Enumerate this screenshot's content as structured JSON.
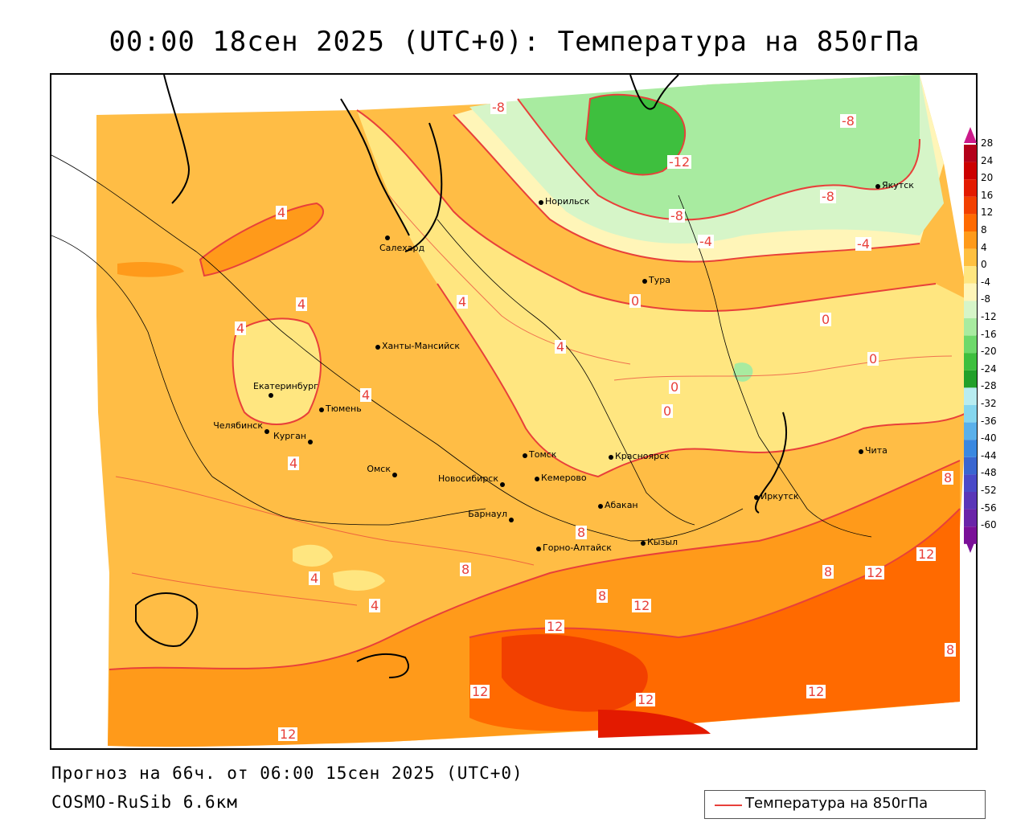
{
  "title": "00:00 18сен 2025 (UTC+0): Температура на 850гПа",
  "footer": {
    "forecast": "Прогноз на 66ч. от 06:00 15сен 2025 (UTC+0)",
    "model": "COSMO-RuSib 6.6км"
  },
  "legend": {
    "label": "Температура на 850гПа",
    "color": "#e8403a"
  },
  "colorbar": {
    "ticks": [
      "28",
      "24",
      "20",
      "16",
      "12",
      "8",
      "4",
      "0",
      "-4",
      "-8",
      "-12",
      "-16",
      "-20",
      "-24",
      "-28",
      "-32",
      "-36",
      "-40",
      "-44",
      "-48",
      "-52",
      "-56",
      "-60"
    ],
    "colors": [
      "#b3001a",
      "#cc0000",
      "#e31a00",
      "#f24000",
      "#ff6a00",
      "#ff9a1a",
      "#ffc040",
      "#ffe680",
      "#fff5b8",
      "#d6f5c8",
      "#a8eba0",
      "#6ed96b",
      "#3ebf3e",
      "#22a02a",
      "#b8ecf0",
      "#86d6ee",
      "#5ab0ea",
      "#3a88e0",
      "#3a66d0",
      "#4a4ac8",
      "#5a36b8",
      "#6a24a8",
      "#7a1098"
    ],
    "top_arrow_color": "#cc1a8a",
    "bottom_arrow_color": "#7a1098"
  },
  "cities": [
    {
      "name": "Норильск"
    },
    {
      "name": "Якутск"
    },
    {
      "name": "Салехард"
    },
    {
      "name": "Тура"
    },
    {
      "name": "Ханты-Мансийск"
    },
    {
      "name": "Екатеринбург"
    },
    {
      "name": "Тюмень"
    },
    {
      "name": "Челябинск"
    },
    {
      "name": "Курган"
    },
    {
      "name": "Омск"
    },
    {
      "name": "Томск"
    },
    {
      "name": "Красноярск"
    },
    {
      "name": "Новосибирск"
    },
    {
      "name": "Кемерово"
    },
    {
      "name": "Абакан"
    },
    {
      "name": "Барнаул"
    },
    {
      "name": "Горно-Алтайск"
    },
    {
      "name": "Кызыл"
    },
    {
      "name": "Иркутск"
    },
    {
      "name": "Чита"
    }
  ],
  "isotherm_labels": [
    "-8",
    "-8",
    "-12",
    "-8",
    "-8",
    "-4",
    "-4",
    "0",
    "0",
    "0",
    "0",
    "0",
    "4",
    "4",
    "4",
    "4",
    "4",
    "4",
    "4",
    "4",
    "4",
    "8",
    "8",
    "8",
    "8",
    "8",
    "8",
    "12",
    "12",
    "12",
    "12",
    "12",
    "12",
    "12",
    "12"
  ]
}
